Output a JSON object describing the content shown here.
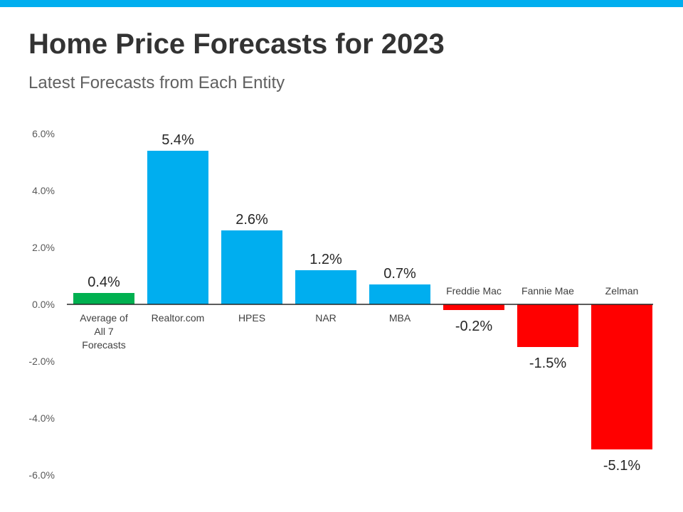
{
  "title": "Home Price Forecasts for 2023",
  "subtitle": "Latest Forecasts from Each Entity",
  "colors": {
    "top_bar": "#00aeef",
    "average": "#00b050",
    "positive": "#00aeef",
    "negative": "#ff0000"
  },
  "chart_data": {
    "type": "bar",
    "title": "Home Price Forecasts for 2023",
    "subtitle": "Latest Forecasts from Each Entity",
    "xlabel": "",
    "ylabel": "",
    "ylim": [
      -6.0,
      6.0
    ],
    "yticks": [
      "6.0%",
      "4.0%",
      "2.0%",
      "0.0%",
      "-2.0%",
      "-4.0%",
      "-6.0%"
    ],
    "ytick_values": [
      6,
      4,
      2,
      0,
      -2,
      -4,
      -6
    ],
    "grid": false,
    "categories": [
      "Average of All 7 Forecasts",
      "Realtor.com",
      "HPES",
      "NAR",
      "MBA",
      "Freddie Mac",
      "Fannie Mae",
      "Zelman"
    ],
    "category_lines": [
      [
        "Average of",
        "All 7",
        "Forecasts"
      ],
      [
        "Realtor.com"
      ],
      [
        "HPES"
      ],
      [
        "NAR"
      ],
      [
        "MBA"
      ],
      [
        "Freddie Mac"
      ],
      [
        "Fannie Mae"
      ],
      [
        "Zelman"
      ]
    ],
    "values": [
      0.4,
      5.4,
      2.6,
      1.2,
      0.7,
      -0.2,
      -1.5,
      -5.1
    ],
    "value_labels": [
      "0.4%",
      "5.4%",
      "2.6%",
      "1.2%",
      "0.7%",
      "-0.2%",
      "-1.5%",
      "-5.1%"
    ]
  }
}
